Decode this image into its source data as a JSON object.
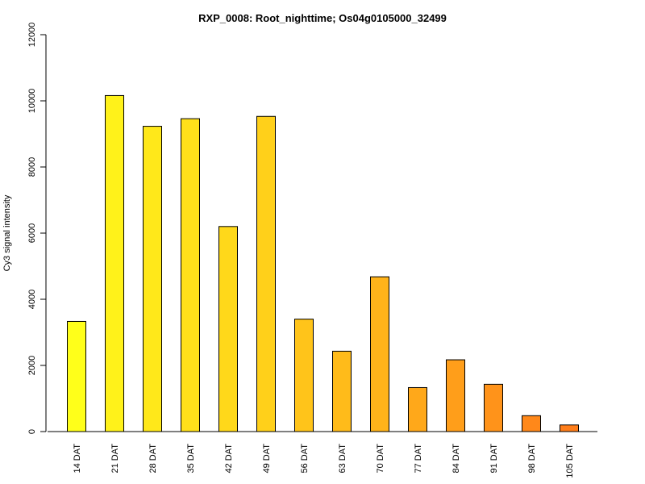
{
  "chart_data": {
    "type": "bar",
    "title": "RXP_0008: Root_nighttime; Os04g0105000_32499",
    "xlabel": "",
    "ylabel": "Cy3 signal intensity",
    "categories": [
      "14 DAT",
      "21 DAT",
      "28 DAT",
      "35 DAT",
      "42 DAT",
      "49 DAT",
      "56 DAT",
      "63 DAT",
      "70 DAT",
      "77 DAT",
      "84 DAT",
      "91 DAT",
      "98 DAT",
      "105 DAT"
    ],
    "values": [
      3330,
      10160,
      9230,
      9460,
      6200,
      9530,
      3400,
      2430,
      4680,
      1330,
      2170,
      1430,
      480,
      200
    ],
    "colors": [
      "#FFFF1A",
      "#FFF21A",
      "#FFE81A",
      "#FFE01A",
      "#FFD81A",
      "#FFD01A",
      "#FFC41A",
      "#FFBB1A",
      "#FFB31A",
      "#FFA81A",
      "#FF9E1A",
      "#FF931A",
      "#FF881A",
      "#FF7E1A"
    ],
    "ylim": [
      0,
      12000
    ],
    "yticks": [
      0,
      2000,
      4000,
      6000,
      8000,
      10000,
      12000
    ],
    "grid": false,
    "legend": "none"
  }
}
